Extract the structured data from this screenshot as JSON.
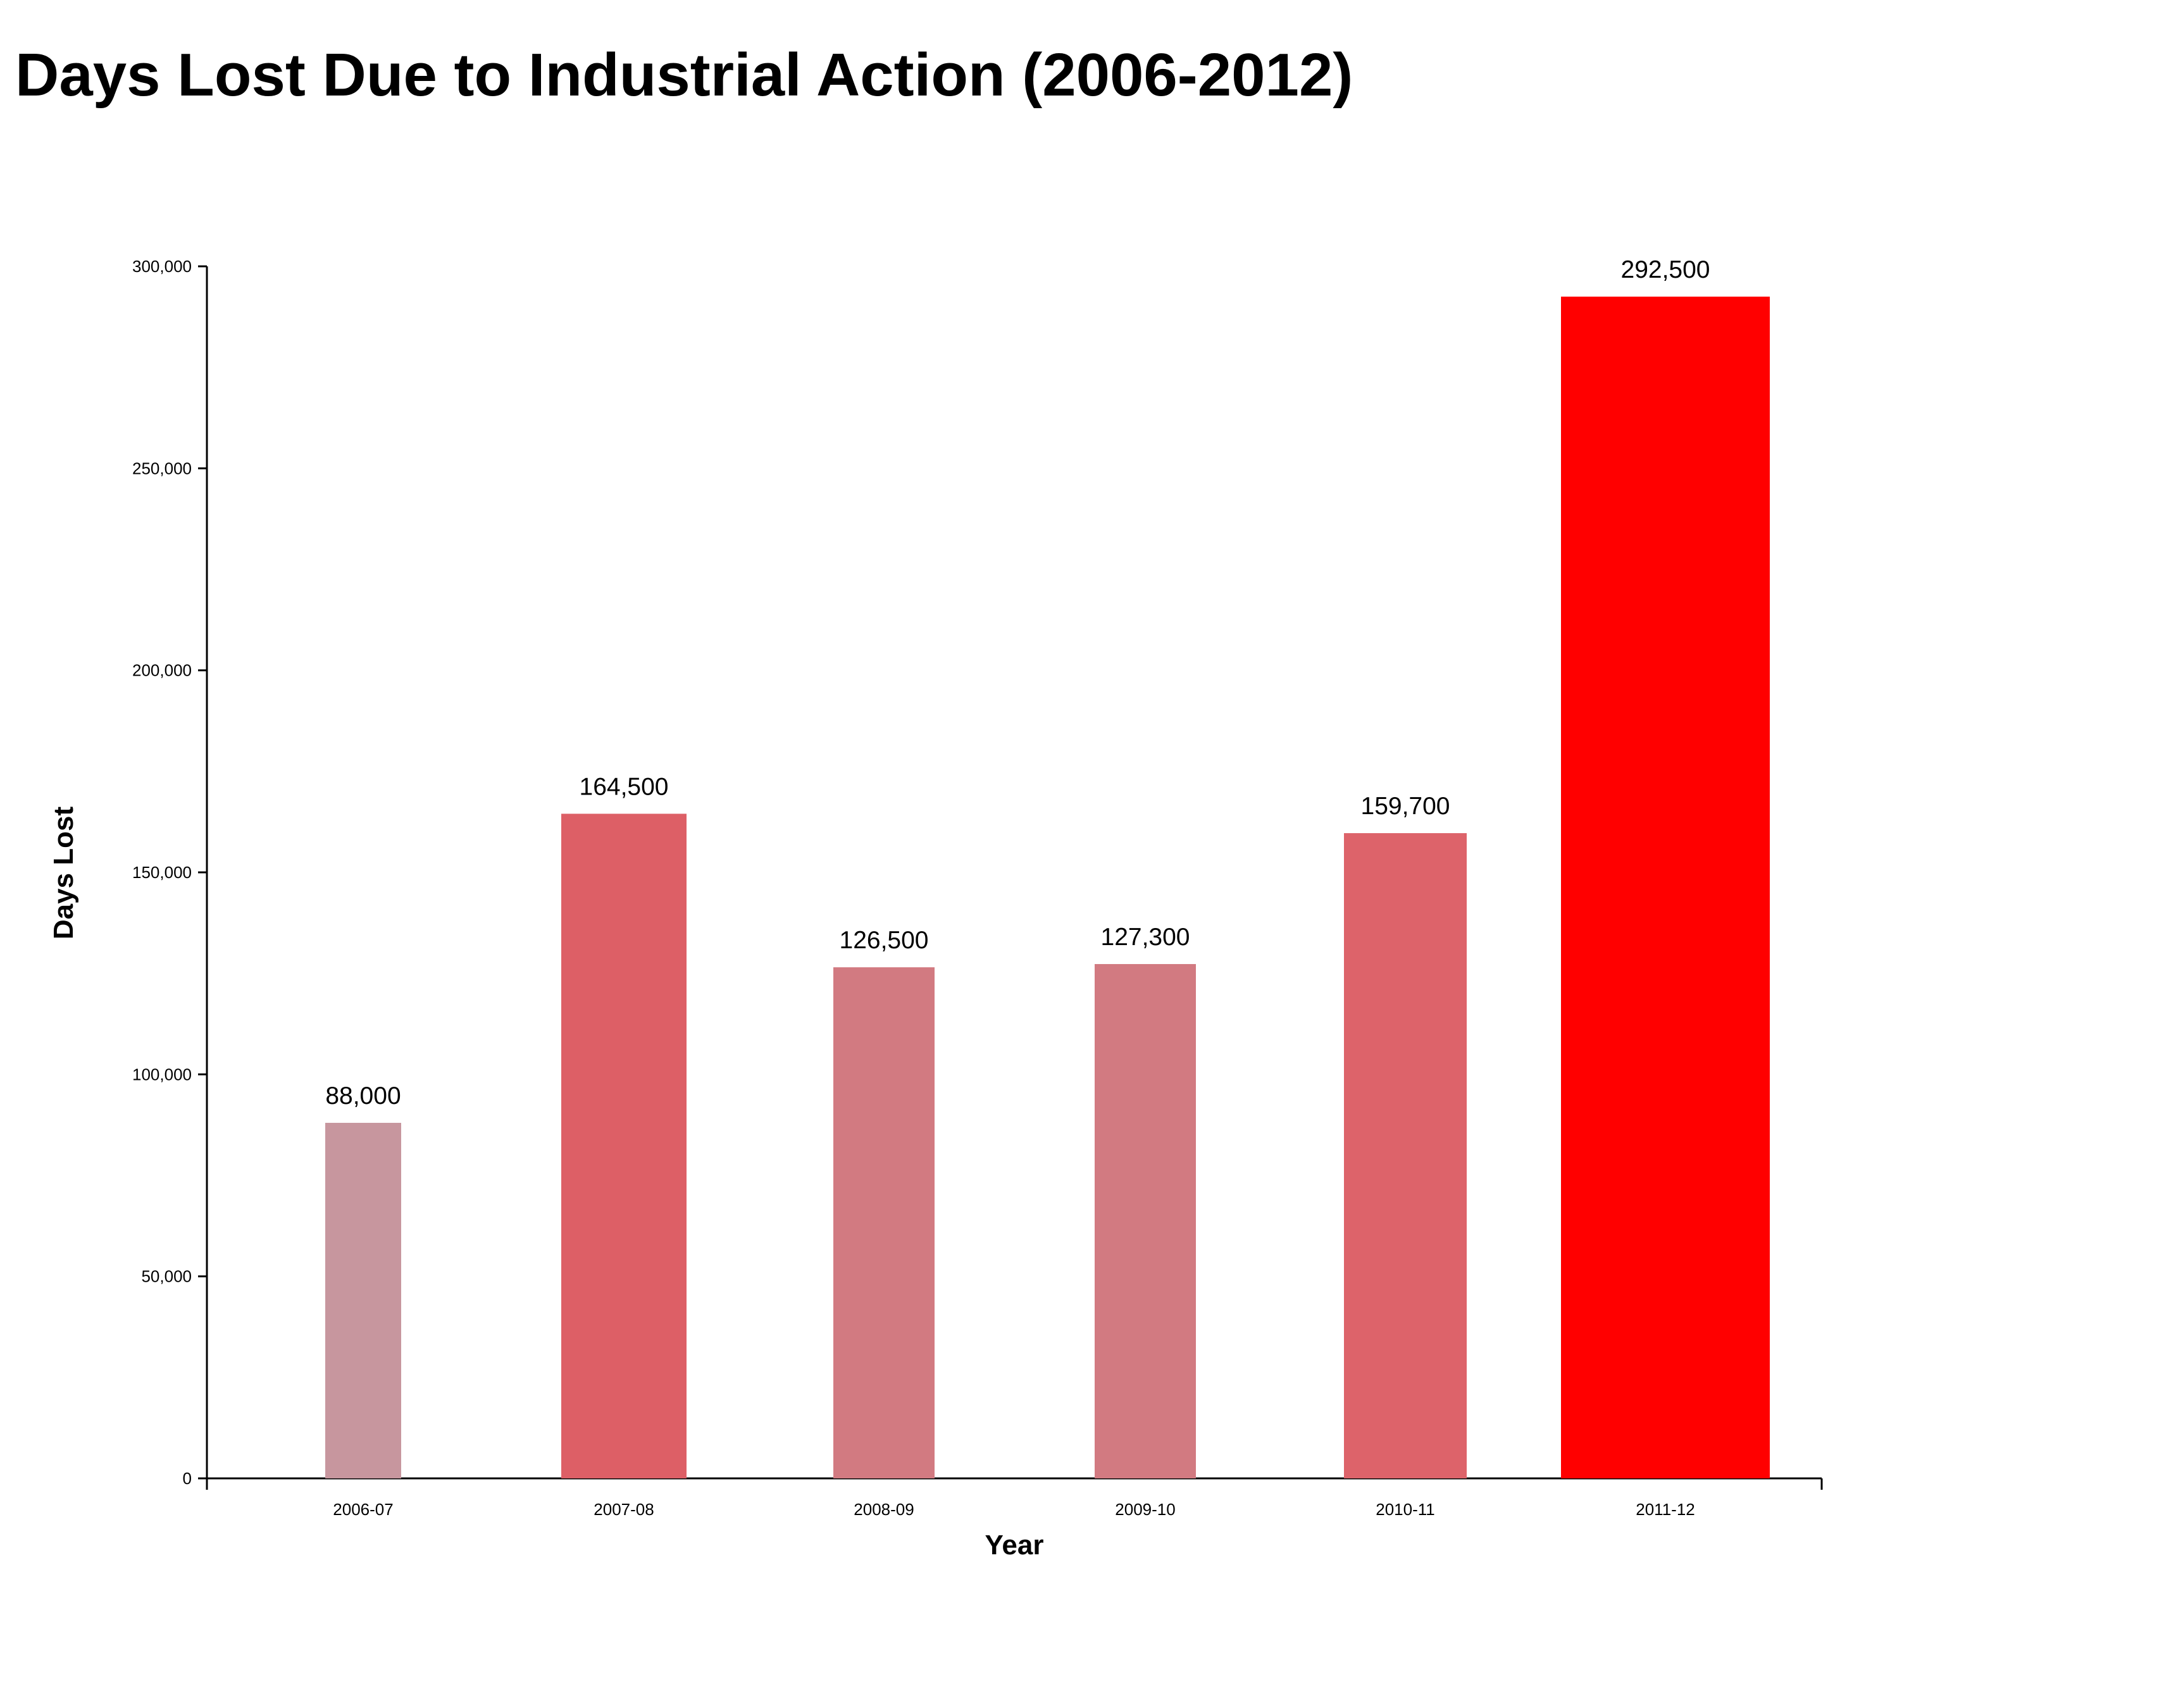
{
  "chart_data": {
    "type": "bar",
    "title": "Days Lost Due to Industrial Action (2006-2012)",
    "xlabel": "Year",
    "ylabel": "Days Lost",
    "ylim": [
      0,
      300000
    ],
    "y_ticks": [
      0,
      50000,
      100000,
      150000,
      200000,
      250000,
      300000
    ],
    "y_tick_labels": [
      "0",
      "50,000",
      "100,000",
      "150,000",
      "200,000",
      "250,000",
      "300,000"
    ],
    "categories": [
      "2006-07",
      "2007-08",
      "2008-09",
      "2009-10",
      "2010-11",
      "2011-12"
    ],
    "values": [
      88000,
      164500,
      126500,
      127300,
      159700,
      292500
    ],
    "value_labels": [
      "88,000",
      "164,500",
      "126,500",
      "127,300",
      "159,700",
      "292,500"
    ],
    "colors": [
      "#c7969e",
      "#dd5f66",
      "#d27a81",
      "#d27a81",
      "#dd636a",
      "#ff0000"
    ],
    "grid": false,
    "legend": "none"
  }
}
